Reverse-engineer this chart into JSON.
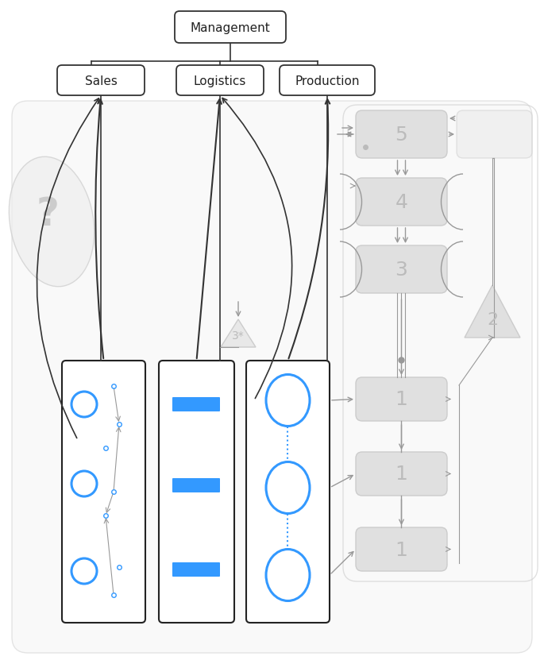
{
  "bg_color": "#ffffff",
  "fig_width": 6.85,
  "fig_height": 8.37,
  "title": "Management",
  "units": [
    "Sales",
    "Logistics",
    "Production"
  ],
  "box_color": "#ffffff",
  "box_edge": "#333333",
  "gray_box_color": "#e0e0e0",
  "gray_text": "#bbbbbb",
  "blue_color": "#3399ff",
  "arrow_color": "#999999",
  "dark_arrow": "#333333"
}
